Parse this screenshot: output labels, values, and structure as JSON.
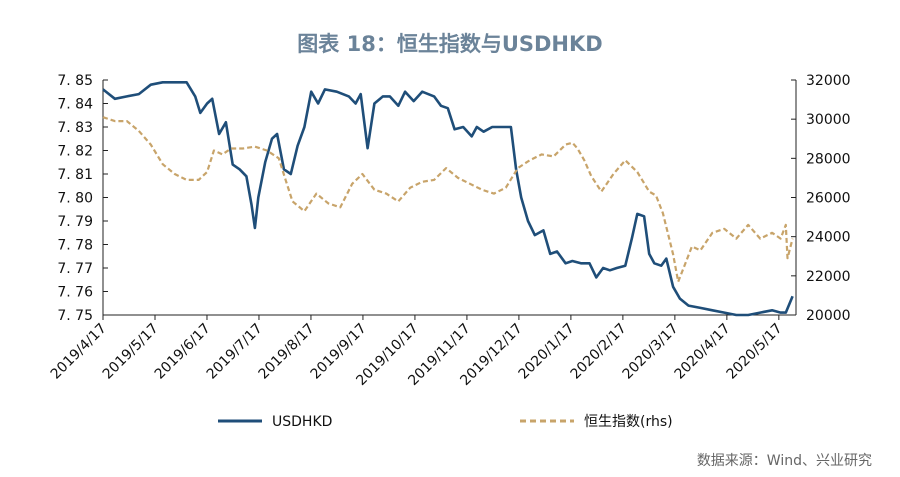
{
  "title": "图表 18：恒生指数与USDHKD",
  "source": "数据来源：Wind、兴业研究",
  "colors": {
    "usdhkd": "#1f4e79",
    "hsi": "#c8a46a"
  },
  "chart_data": {
    "type": "line",
    "left_axis": {
      "ylim": [
        7.75,
        7.85
      ],
      "ticks": [
        "7. 85",
        "7. 84",
        "7. 83",
        "7. 82",
        "7. 81",
        "7. 80",
        "7. 79",
        "7. 78",
        "7. 77",
        "7. 76",
        "7. 75"
      ]
    },
    "right_axis": {
      "ylim": [
        20000,
        32000
      ],
      "ticks": [
        "32000",
        "30000",
        "28000",
        "26000",
        "24000",
        "22000",
        "20000"
      ]
    },
    "x_ticks": [
      "2019/4/17",
      "2019/5/17",
      "2019/6/17",
      "2019/7/17",
      "2019/8/17",
      "2019/9/17",
      "2019/10/17",
      "2019/11/17",
      "2019/12/17",
      "2020/1/17",
      "2020/2/17",
      "2020/3/17",
      "2020/4/17",
      "2020/5/17"
    ],
    "series": [
      {
        "name": "USDHKD",
        "axis": "left",
        "style": "solid",
        "points": [
          [
            "2019-04-17",
            7.846
          ],
          [
            "2019-04-24",
            7.842
          ],
          [
            "2019-05-01",
            7.843
          ],
          [
            "2019-05-08",
            7.844
          ],
          [
            "2019-05-15",
            7.848
          ],
          [
            "2019-05-22",
            7.849
          ],
          [
            "2019-05-29",
            7.849
          ],
          [
            "2019-06-05",
            7.849
          ],
          [
            "2019-06-10",
            7.843
          ],
          [
            "2019-06-13",
            7.836
          ],
          [
            "2019-06-17",
            7.84
          ],
          [
            "2019-06-20",
            7.842
          ],
          [
            "2019-06-24",
            7.827
          ],
          [
            "2019-06-28",
            7.832
          ],
          [
            "2019-07-02",
            7.814
          ],
          [
            "2019-07-06",
            7.812
          ],
          [
            "2019-07-10",
            7.809
          ],
          [
            "2019-07-13",
            7.797
          ],
          [
            "2019-07-15",
            7.787
          ],
          [
            "2019-07-17",
            7.8
          ],
          [
            "2019-07-21",
            7.815
          ],
          [
            "2019-07-25",
            7.825
          ],
          [
            "2019-07-28",
            7.827
          ],
          [
            "2019-08-01",
            7.812
          ],
          [
            "2019-08-05",
            7.81
          ],
          [
            "2019-08-09",
            7.822
          ],
          [
            "2019-08-13",
            7.83
          ],
          [
            "2019-08-17",
            7.845
          ],
          [
            "2019-08-21",
            7.84
          ],
          [
            "2019-08-25",
            7.846
          ],
          [
            "2019-09-01",
            7.845
          ],
          [
            "2019-09-08",
            7.843
          ],
          [
            "2019-09-12",
            7.84
          ],
          [
            "2019-09-15",
            7.844
          ],
          [
            "2019-09-19",
            7.821
          ],
          [
            "2019-09-23",
            7.84
          ],
          [
            "2019-09-28",
            7.843
          ],
          [
            "2019-10-02",
            7.843
          ],
          [
            "2019-10-07",
            7.839
          ],
          [
            "2019-10-11",
            7.845
          ],
          [
            "2019-10-16",
            7.841
          ],
          [
            "2019-10-21",
            7.845
          ],
          [
            "2019-10-28",
            7.843
          ],
          [
            "2019-11-01",
            7.839
          ],
          [
            "2019-11-05",
            7.838
          ],
          [
            "2019-11-09",
            7.829
          ],
          [
            "2019-11-14",
            7.83
          ],
          [
            "2019-11-19",
            7.826
          ],
          [
            "2019-11-22",
            7.83
          ],
          [
            "2019-11-26",
            7.828
          ],
          [
            "2019-12-01",
            7.83
          ],
          [
            "2019-12-09",
            7.83
          ],
          [
            "2019-12-12",
            7.83
          ],
          [
            "2019-12-15",
            7.812
          ],
          [
            "2019-12-18",
            7.8
          ],
          [
            "2019-12-22",
            7.79
          ],
          [
            "2019-12-26",
            7.784
          ],
          [
            "2019-12-31",
            7.786
          ],
          [
            "2020-01-04",
            7.776
          ],
          [
            "2020-01-08",
            7.777
          ],
          [
            "2020-01-13",
            7.772
          ],
          [
            "2020-01-17",
            7.773
          ],
          [
            "2020-01-22",
            7.772
          ],
          [
            "2020-01-27",
            7.772
          ],
          [
            "2020-01-31",
            7.766
          ],
          [
            "2020-02-04",
            7.77
          ],
          [
            "2020-02-08",
            7.769
          ],
          [
            "2020-02-12",
            7.77
          ],
          [
            "2020-02-17",
            7.771
          ],
          [
            "2020-02-21",
            7.783
          ],
          [
            "2020-02-24",
            7.793
          ],
          [
            "2020-02-28",
            7.792
          ],
          [
            "2020-03-02",
            7.776
          ],
          [
            "2020-03-05",
            7.772
          ],
          [
            "2020-03-09",
            7.771
          ],
          [
            "2020-03-12",
            7.774
          ],
          [
            "2020-03-16",
            7.762
          ],
          [
            "2020-03-20",
            7.757
          ],
          [
            "2020-03-25",
            7.754
          ],
          [
            "2020-04-01",
            7.753
          ],
          [
            "2020-04-08",
            7.752
          ],
          [
            "2020-04-15",
            7.751
          ],
          [
            "2020-04-22",
            7.75
          ],
          [
            "2020-04-29",
            7.75
          ],
          [
            "2020-05-06",
            7.751
          ],
          [
            "2020-05-13",
            7.752
          ],
          [
            "2020-05-18",
            7.751
          ],
          [
            "2020-05-21",
            7.751
          ],
          [
            "2020-05-25",
            7.758
          ]
        ]
      },
      {
        "name": "恒生指数(rhs)",
        "axis": "right",
        "style": "dashed",
        "points": [
          [
            "2019-04-17",
            30100
          ],
          [
            "2019-04-24",
            29900
          ],
          [
            "2019-05-01",
            29900
          ],
          [
            "2019-05-08",
            29400
          ],
          [
            "2019-05-15",
            28700
          ],
          [
            "2019-05-22",
            27700
          ],
          [
            "2019-05-29",
            27200
          ],
          [
            "2019-06-05",
            26900
          ],
          [
            "2019-06-12",
            26900
          ],
          [
            "2019-06-17",
            27300
          ],
          [
            "2019-06-21",
            28400
          ],
          [
            "2019-06-26",
            28200
          ],
          [
            "2019-07-01",
            28500
          ],
          [
            "2019-07-08",
            28500
          ],
          [
            "2019-07-15",
            28600
          ],
          [
            "2019-07-22",
            28400
          ],
          [
            "2019-07-29",
            28000
          ],
          [
            "2019-08-02",
            26900
          ],
          [
            "2019-08-06",
            25800
          ],
          [
            "2019-08-13",
            25300
          ],
          [
            "2019-08-20",
            26200
          ],
          [
            "2019-08-27",
            25700
          ],
          [
            "2019-09-03",
            25500
          ],
          [
            "2019-09-10",
            26700
          ],
          [
            "2019-09-16",
            27200
          ],
          [
            "2019-09-23",
            26400
          ],
          [
            "2019-09-30",
            26200
          ],
          [
            "2019-10-07",
            25800
          ],
          [
            "2019-10-14",
            26500
          ],
          [
            "2019-10-21",
            26800
          ],
          [
            "2019-10-28",
            26900
          ],
          [
            "2019-11-04",
            27500
          ],
          [
            "2019-11-11",
            27000
          ],
          [
            "2019-11-18",
            26700
          ],
          [
            "2019-11-25",
            26400
          ],
          [
            "2019-12-02",
            26200
          ],
          [
            "2019-12-09",
            26500
          ],
          [
            "2019-12-16",
            27500
          ],
          [
            "2019-12-23",
            27900
          ],
          [
            "2019-12-30",
            28200
          ],
          [
            "2020-01-06",
            28100
          ],
          [
            "2020-01-13",
            28700
          ],
          [
            "2020-01-17",
            28800
          ],
          [
            "2020-01-20",
            28500
          ],
          [
            "2020-01-24",
            27900
          ],
          [
            "2020-01-28",
            27100
          ],
          [
            "2020-02-03",
            26300
          ],
          [
            "2020-02-10",
            27200
          ],
          [
            "2020-02-17",
            27900
          ],
          [
            "2020-02-24",
            27300
          ],
          [
            "2020-03-02",
            26300
          ],
          [
            "2020-03-06",
            26100
          ],
          [
            "2020-03-10",
            25200
          ],
          [
            "2020-03-16",
            23100
          ],
          [
            "2020-03-19",
            21700
          ],
          [
            "2020-03-23",
            22600
          ],
          [
            "2020-03-27",
            23500
          ],
          [
            "2020-04-01",
            23300
          ],
          [
            "2020-04-08",
            24200
          ],
          [
            "2020-04-15",
            24400
          ],
          [
            "2020-04-22",
            23900
          ],
          [
            "2020-04-29",
            24600
          ],
          [
            "2020-05-06",
            23900
          ],
          [
            "2020-05-13",
            24200
          ],
          [
            "2020-05-18",
            23900
          ],
          [
            "2020-05-21",
            24600
          ],
          [
            "2020-05-22",
            22900
          ],
          [
            "2020-05-25",
            23900
          ]
        ]
      }
    ],
    "legend": {
      "placement": "bottom",
      "entries": [
        "USDHKD",
        "恒生指数(rhs)"
      ]
    },
    "grid": false
  }
}
